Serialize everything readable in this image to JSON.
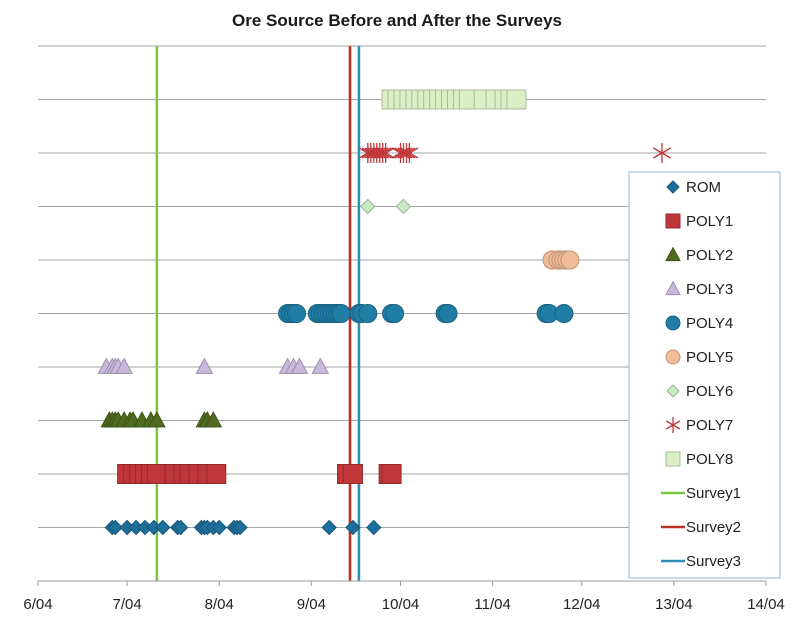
{
  "chart_data": {
    "type": "scatter",
    "title": "Ore Source Before and After the Surveys",
    "xlabel": "",
    "ylabel": "",
    "x_axis": {
      "ticks": [
        "6/04",
        "7/04",
        "8/04",
        "9/04",
        "10/04",
        "11/04",
        "12/04",
        "13/04",
        "14/04"
      ],
      "range": [
        "6/04",
        "14/04"
      ]
    },
    "grid": "horizontal",
    "legend_position": "right",
    "series": [
      {
        "name": "ROM",
        "marker": "diamond",
        "color": "#1f6f9c",
        "row": 1,
        "x": [
          "6/29",
          "6/30",
          "7/04",
          "7/07",
          "7/10",
          "7/13",
          "7/16",
          "7/21",
          "7/22",
          "7/29",
          "7/30",
          "7/31",
          "8/02",
          "8/04",
          "8/09",
          "8/10",
          "8/11",
          "9/10",
          "9/18",
          "9/25"
        ]
      },
      {
        "name": "POLY1",
        "marker": "square",
        "color": "#c0373a",
        "row": 2,
        "x": [
          "7/04",
          "7/06",
          "7/08",
          "7/10",
          "7/12",
          "7/14",
          "7/20",
          "7/23",
          "7/25",
          "7/28",
          "7/31",
          "8/03",
          "9/16",
          "9/18",
          "9/30",
          "10/01"
        ]
      },
      {
        "name": "POLY2",
        "marker": "triangle",
        "color": "#4f6b1f",
        "row": 3,
        "x": [
          "6/28",
          "6/29",
          "6/30",
          "7/01",
          "7/03",
          "7/05",
          "7/06",
          "7/09",
          "7/12",
          "7/14",
          "7/30",
          "7/31",
          "8/02"
        ]
      },
      {
        "name": "POLY3",
        "marker": "triangle",
        "color": "#c8b8dc",
        "row": 4,
        "x": [
          "6/27",
          "6/29",
          "6/30",
          "7/01",
          "7/03",
          "7/30",
          "8/27",
          "8/29",
          "8/31",
          "9/07"
        ]
      },
      {
        "name": "POLY4",
        "marker": "circle",
        "color": "#1f7da6",
        "row": 5,
        "x": [
          "8/27",
          "8/28",
          "8/29",
          "8/30",
          "9/06",
          "9/07",
          "9/08",
          "9/09",
          "9/10",
          "9/11",
          "9/12",
          "9/13",
          "9/14",
          "9/20",
          "9/21",
          "9/23",
          "10/01",
          "10/02",
          "10/19",
          "10/20",
          "11/22",
          "11/23",
          "11/28"
        ]
      },
      {
        "name": "POLY5",
        "marker": "circle",
        "color": "#f2bc99",
        "row": 6,
        "x": [
          "11/24",
          "11/26",
          "11/27",
          "11/28",
          "11/29",
          "11/30"
        ]
      },
      {
        "name": "POLY6",
        "marker": "diamond",
        "color": "#c9e8c4",
        "row": 7,
        "x": [
          "9/23",
          "10/05"
        ]
      },
      {
        "name": "POLY7",
        "marker": "star",
        "color": "#c0373a",
        "row": 8,
        "x": [
          "9/23",
          "9/24",
          "9/25",
          "9/26",
          "9/27",
          "9/28",
          "9/29",
          "10/04",
          "10/05",
          "10/06",
          "10/07",
          "12/31"
        ]
      },
      {
        "name": "POLY8",
        "marker": "square",
        "color": "#dbefc6",
        "row": 9,
        "x": [
          "10/01",
          "10/03",
          "10/05",
          "10/07",
          "10/09",
          "10/11",
          "10/13",
          "10/15",
          "10/17",
          "10/19",
          "10/21",
          "10/23",
          "10/25",
          "10/27",
          "11/01",
          "11/05",
          "11/08",
          "11/10",
          "11/12"
        ]
      }
    ],
    "vertical_lines": [
      {
        "name": "Survey1",
        "x": "7/14",
        "color": "#7ac943"
      },
      {
        "name": "Survey2",
        "x": "9/17",
        "color": "#b83226"
      },
      {
        "name": "Survey3",
        "x": "9/20",
        "color": "#2f8fb8"
      }
    ]
  }
}
